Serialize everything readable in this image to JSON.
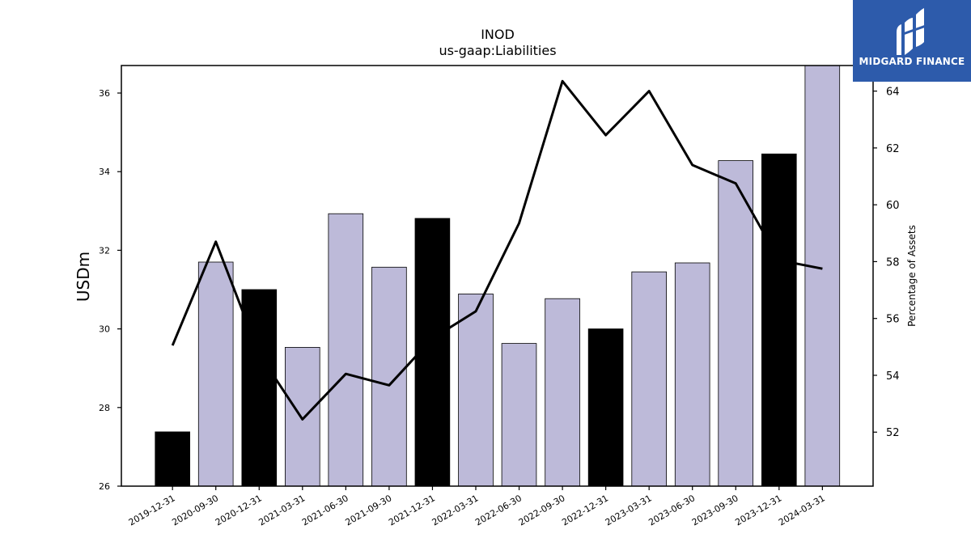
{
  "brand": {
    "name": "MIDGARD FINANCE",
    "color": "#2d5bab"
  },
  "chart_data": {
    "type": "bar",
    "title": "INOD",
    "subtitle": "us-gaap:Liabilities",
    "ylabel": "USDm",
    "y2label": "Percentage of Assets",
    "categories": [
      "2019-12-31",
      "2020-09-30",
      "2020-12-31",
      "2021-03-31",
      "2021-06-30",
      "2021-09-30",
      "2021-12-31",
      "2022-03-31",
      "2022-06-30",
      "2022-09-30",
      "2022-12-31",
      "2023-03-31",
      "2023-06-30",
      "2023-09-30",
      "2023-12-31",
      "2024-03-31"
    ],
    "ylim": [
      26,
      36.7
    ],
    "y2lim": [
      50.1,
      64.9
    ],
    "yticks": [
      26,
      28,
      30,
      32,
      34,
      36
    ],
    "y2ticks": [
      52,
      54,
      56,
      58,
      60,
      62,
      64
    ],
    "series": [
      {
        "kind": "bar",
        "values": [
          27.38,
          31.7,
          31.0,
          29.53,
          32.93,
          31.57,
          32.81,
          30.89,
          29.63,
          30.77,
          30.0,
          31.45,
          31.68,
          34.28,
          34.45,
          36.8
        ],
        "colors": [
          "#000000",
          "#bdbad9",
          "#000000",
          "#bdbad9",
          "#bdbad9",
          "#bdbad9",
          "#000000",
          "#bdbad9",
          "#bdbad9",
          "#bdbad9",
          "#000000",
          "#bdbad9",
          "#bdbad9",
          "#bdbad9",
          "#000000",
          "#bdbad9"
        ]
      },
      {
        "kind": "line",
        "axis": "right",
        "color": "#000000",
        "values": [
          55.05,
          58.7,
          54.75,
          52.45,
          54.05,
          53.65,
          55.3,
          56.25,
          59.35,
          64.35,
          62.45,
          64.0,
          61.4,
          60.75,
          58.05,
          57.75
        ]
      }
    ],
    "grid": false,
    "legend": "none"
  }
}
